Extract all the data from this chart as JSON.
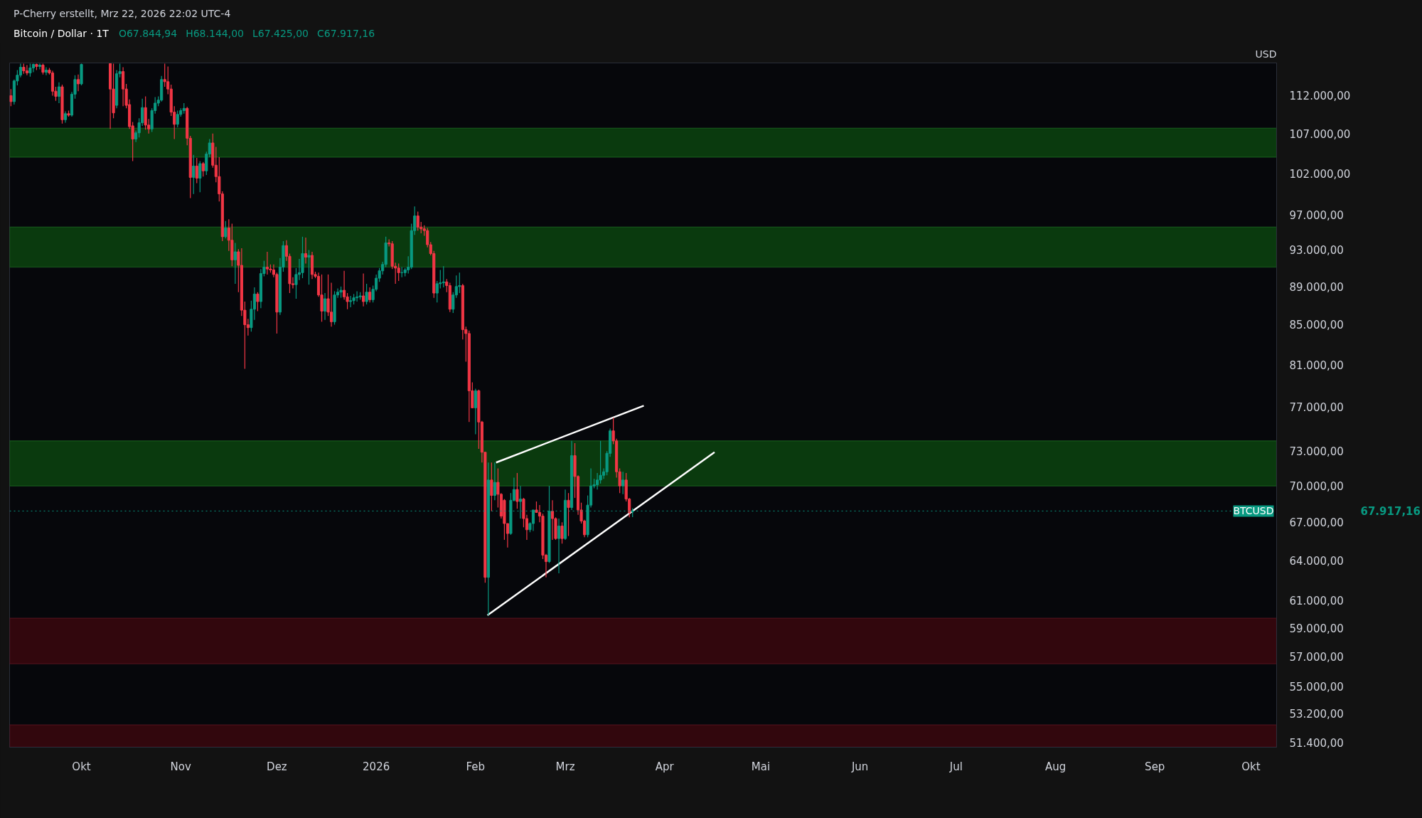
{
  "chart_data": {
    "type": "candlestick",
    "title": "P-Cherry erstellt, Mrz 22, 2026 22:02 UTC-4",
    "subtitle": "Bitcoin / Dollar · 1T",
    "ylabel": "USD",
    "log": true,
    "x": [
      "2025-09-09",
      "2025-09-10",
      "2025-09-11",
      "2025-09-12",
      "2025-09-13",
      "2025-09-14",
      "2025-09-15",
      "2025-09-16",
      "2025-09-17",
      "2025-09-18",
      "2025-09-19",
      "2025-09-20",
      "2025-09-21",
      "2025-09-22",
      "2025-09-23",
      "2025-09-24",
      "2025-09-25",
      "2025-09-26",
      "2025-09-27",
      "2025-09-28",
      "2025-09-29",
      "2025-09-30",
      "2025-10-01",
      "2025-10-10",
      "2025-10-11",
      "2025-10-12",
      "2025-10-13",
      "2025-10-14",
      "2025-10-15",
      "2025-10-16",
      "2025-10-17",
      "2025-10-18",
      "2025-10-19",
      "2025-10-20",
      "2025-10-21",
      "2025-10-22",
      "2025-10-23",
      "2025-10-24",
      "2025-10-25",
      "2025-10-26",
      "2025-10-27",
      "2025-10-28",
      "2025-10-29",
      "2025-10-30",
      "2025-10-31",
      "2025-11-01",
      "2025-11-02",
      "2025-11-03",
      "2025-11-04",
      "2025-11-05",
      "2025-11-06",
      "2025-11-07",
      "2025-11-08",
      "2025-11-09",
      "2025-11-10",
      "2025-11-11",
      "2025-11-12",
      "2025-11-13",
      "2025-11-14",
      "2025-11-15",
      "2025-11-16",
      "2025-11-17",
      "2025-11-18",
      "2025-11-19",
      "2025-11-20",
      "2025-11-21",
      "2025-11-22",
      "2025-11-23",
      "2025-11-24",
      "2025-11-25",
      "2025-11-26",
      "2025-11-27",
      "2025-11-28",
      "2025-11-29",
      "2025-11-30",
      "2025-12-01",
      "2025-12-02",
      "2025-12-03",
      "2025-12-04",
      "2025-12-05",
      "2025-12-06",
      "2025-12-07",
      "2025-12-08",
      "2025-12-09",
      "2025-12-10",
      "2025-12-11",
      "2025-12-12",
      "2025-12-13",
      "2025-12-14",
      "2025-12-15",
      "2025-12-16",
      "2025-12-17",
      "2025-12-18",
      "2025-12-19",
      "2025-12-20",
      "2025-12-21",
      "2025-12-22",
      "2025-12-23",
      "2025-12-24",
      "2025-12-25",
      "2025-12-26",
      "2025-12-27",
      "2025-12-28",
      "2025-12-29",
      "2025-12-30",
      "2025-12-31",
      "2026-01-01",
      "2026-01-02",
      "2026-01-03",
      "2026-01-04",
      "2026-01-05",
      "2026-01-06",
      "2026-01-07",
      "2026-01-08",
      "2026-01-09",
      "2026-01-10",
      "2026-01-11",
      "2026-01-12",
      "2026-01-13",
      "2026-01-14",
      "2026-01-15",
      "2026-01-16",
      "2026-01-17",
      "2026-01-18",
      "2026-01-19",
      "2026-01-20",
      "2026-01-21",
      "2026-01-22",
      "2026-01-23",
      "2026-01-24",
      "2026-01-25",
      "2026-01-26",
      "2026-01-27",
      "2026-01-28",
      "2026-01-29",
      "2026-01-30",
      "2026-01-31",
      "2026-02-01",
      "2026-02-02",
      "2026-02-03",
      "2026-02-04",
      "2026-02-05",
      "2026-02-06",
      "2026-02-07",
      "2026-02-08",
      "2026-02-09",
      "2026-02-10",
      "2026-02-11",
      "2026-02-12",
      "2026-02-13",
      "2026-02-14",
      "2026-02-15",
      "2026-02-16",
      "2026-02-17",
      "2026-02-18",
      "2026-02-19",
      "2026-02-20",
      "2026-02-21",
      "2026-02-22",
      "2026-02-23",
      "2026-02-24",
      "2026-02-25",
      "2026-02-26",
      "2026-02-27",
      "2026-02-28",
      "2026-03-01",
      "2026-03-02",
      "2026-03-03",
      "2026-03-04",
      "2026-03-05",
      "2026-03-06",
      "2026-03-07",
      "2026-03-08",
      "2026-03-09",
      "2026-03-10",
      "2026-03-11",
      "2026-03-12",
      "2026-03-13",
      "2026-03-14",
      "2026-03-15",
      "2026-03-16",
      "2026-03-17",
      "2026-03-18",
      "2026-03-19",
      "2026-03-20",
      "2026-03-21",
      "2026-03-22"
    ],
    "ohlc": [
      [
        112000,
        112900,
        110600,
        111200
      ],
      [
        111200,
        114200,
        110800,
        114000
      ],
      [
        114000,
        115500,
        113400,
        114800
      ],
      [
        114800,
        116400,
        114500,
        115900
      ],
      [
        115900,
        116400,
        115000,
        115400
      ],
      [
        115400,
        116200,
        114800,
        115100
      ],
      [
        115100,
        116400,
        114600,
        115800
      ],
      [
        115800,
        116400,
        115200,
        116300
      ],
      [
        116300,
        116400,
        115500,
        116000
      ],
      [
        116000,
        116400,
        115600,
        116200
      ],
      [
        116200,
        116400,
        114900,
        115200
      ],
      [
        115200,
        115900,
        114800,
        115500
      ],
      [
        115500,
        115800,
        114900,
        115100
      ],
      [
        115100,
        115400,
        112000,
        112600
      ],
      [
        112600,
        113200,
        111300,
        111900
      ],
      [
        111900,
        113800,
        111000,
        113200
      ],
      [
        113200,
        113500,
        108300,
        108800
      ],
      [
        108800,
        109900,
        108400,
        109600
      ],
      [
        109600,
        110000,
        109200,
        109400
      ],
      [
        109400,
        112500,
        109200,
        112200
      ],
      [
        112200,
        114800,
        111600,
        114200
      ],
      [
        114200,
        114900,
        112600,
        113600
      ],
      [
        113600,
        116400,
        113400,
        116300
      ],
      [
        116400,
        116400,
        107600,
        112900
      ],
      [
        112900,
        116400,
        109000,
        109700
      ],
      [
        110700,
        115500,
        110300,
        115000
      ],
      [
        115000,
        116400,
        114500,
        115300
      ],
      [
        115300,
        115900,
        110600,
        112900
      ],
      [
        112900,
        113600,
        110300,
        110700
      ],
      [
        110800,
        111500,
        107600,
        107900
      ],
      [
        108000,
        108500,
        103500,
        106300
      ],
      [
        106300,
        107400,
        105900,
        107100
      ],
      [
        107100,
        109000,
        106500,
        108400
      ],
      [
        108400,
        111600,
        108000,
        110400
      ],
      [
        110400,
        111900,
        107500,
        108100
      ],
      [
        108100,
        108900,
        107000,
        107600
      ],
      [
        107600,
        110300,
        107200,
        110000
      ],
      [
        110000,
        111800,
        109600,
        111000
      ],
      [
        111000,
        111900,
        110600,
        111400
      ],
      [
        111400,
        114700,
        111200,
        114200
      ],
      [
        114200,
        116400,
        113200,
        113900
      ],
      [
        113900,
        116000,
        112200,
        112900
      ],
      [
        112900,
        113500,
        109300,
        109800
      ],
      [
        109800,
        110600,
        106300,
        108200
      ],
      [
        108200,
        110000,
        107800,
        109500
      ],
      [
        109500,
        110300,
        109200,
        110000
      ],
      [
        110000,
        111000,
        109600,
        110300
      ],
      [
        110300,
        110500,
        105500,
        106400
      ],
      [
        106400,
        106700,
        99000,
        101500
      ],
      [
        101500,
        104300,
        99500,
        102900
      ],
      [
        102900,
        103900,
        100800,
        101400
      ],
      [
        101400,
        103500,
        99700,
        103200
      ],
      [
        103200,
        103400,
        101600,
        102300
      ],
      [
        102300,
        104700,
        101800,
        104400
      ],
      [
        104400,
        106300,
        104000,
        105800
      ],
      [
        105800,
        107000,
        102700,
        103000
      ],
      [
        103000,
        105300,
        100900,
        101600
      ],
      [
        101600,
        104000,
        98600,
        99500
      ],
      [
        99500,
        99800,
        94000,
        94500
      ],
      [
        94500,
        96300,
        94300,
        95500
      ],
      [
        95500,
        96500,
        92900,
        94100
      ],
      [
        94100,
        96000,
        91200,
        91900
      ],
      [
        91900,
        93800,
        89300,
        92800
      ],
      [
        92800,
        93100,
        88400,
        91300
      ],
      [
        91300,
        93200,
        85900,
        86500
      ],
      [
        86500,
        87400,
        80600,
        85000
      ],
      [
        85000,
        85600,
        83900,
        84700
      ],
      [
        84700,
        87500,
        84300,
        86600
      ],
      [
        86600,
        88900,
        85500,
        88200
      ],
      [
        88200,
        88400,
        86400,
        87400
      ],
      [
        87400,
        90900,
        86700,
        90400
      ],
      [
        90400,
        91800,
        90100,
        91100
      ],
      [
        91100,
        92800,
        90300,
        90900
      ],
      [
        90900,
        91400,
        90500,
        90800
      ],
      [
        90800,
        91400,
        90000,
        90300
      ],
      [
        90300,
        90500,
        84100,
        86300
      ],
      [
        86300,
        92100,
        86000,
        91100
      ],
      [
        91100,
        94000,
        90600,
        93500
      ],
      [
        93500,
        94100,
        91800,
        92300
      ],
      [
        92300,
        92600,
        88300,
        89300
      ],
      [
        89300,
        90000,
        88800,
        89200
      ],
      [
        89200,
        91000,
        87700,
        90300
      ],
      [
        90300,
        92000,
        89700,
        90500
      ],
      [
        90500,
        94500,
        89900,
        92600
      ],
      [
        92600,
        94400,
        91500,
        92200
      ],
      [
        92200,
        93000,
        89200,
        92400
      ],
      [
        92400,
        92800,
        89800,
        90300
      ],
      [
        90300,
        90600,
        89900,
        90100
      ],
      [
        90100,
        90500,
        87900,
        88100
      ],
      [
        88100,
        90300,
        85300,
        86400
      ],
      [
        86400,
        88300,
        85500,
        87700
      ],
      [
        87700,
        90300,
        85900,
        86300
      ],
      [
        86300,
        89400,
        84800,
        85300
      ],
      [
        85300,
        88500,
        85000,
        88100
      ],
      [
        88100,
        88800,
        87800,
        88400
      ],
      [
        88400,
        89000,
        87800,
        88600
      ],
      [
        88600,
        90700,
        87600,
        87900
      ],
      [
        87900,
        88300,
        86600,
        87400
      ],
      [
        87400,
        88000,
        86800,
        87500
      ],
      [
        87500,
        88200,
        87100,
        87800
      ],
      [
        87800,
        88500,
        87400,
        87900
      ],
      [
        87900,
        88400,
        87600,
        88000
      ],
      [
        88000,
        90400,
        86900,
        87400
      ],
      [
        87400,
        89300,
        87100,
        88400
      ],
      [
        88400,
        88900,
        87300,
        87600
      ],
      [
        87600,
        89100,
        87300,
        88700
      ],
      [
        88700,
        90300,
        88500,
        89900
      ],
      [
        89900,
        91000,
        89500,
        90700
      ],
      [
        90700,
        91700,
        90300,
        91400
      ],
      [
        91400,
        94500,
        91100,
        93800
      ],
      [
        93800,
        94200,
        93400,
        93700
      ],
      [
        93700,
        94000,
        90900,
        91200
      ],
      [
        91200,
        91600,
        89300,
        91000
      ],
      [
        91000,
        91500,
        89600,
        90500
      ],
      [
        90500,
        91100,
        90000,
        90500
      ],
      [
        90500,
        91000,
        90100,
        90800
      ],
      [
        90800,
        92300,
        90400,
        91100
      ],
      [
        91100,
        96000,
        90900,
        95200
      ],
      [
        95200,
        98000,
        94700,
        96900
      ],
      [
        96900,
        97400,
        95200,
        95600
      ],
      [
        95600,
        96200,
        94900,
        95400
      ],
      [
        95400,
        95800,
        94600,
        95200
      ],
      [
        95200,
        95500,
        93300,
        93600
      ],
      [
        93600,
        93900,
        92400,
        92600
      ],
      [
        92600,
        92900,
        87800,
        88300
      ],
      [
        88300,
        89600,
        87300,
        89300
      ],
      [
        89300,
        90800,
        88800,
        89400
      ],
      [
        89400,
        91200,
        88900,
        89500
      ],
      [
        89500,
        89800,
        88400,
        89100
      ],
      [
        89100,
        89400,
        86300,
        86600
      ],
      [
        86600,
        88400,
        86200,
        88100
      ],
      [
        88100,
        90200,
        87800,
        89000
      ],
      [
        89000,
        90500,
        88300,
        89100
      ],
      [
        89100,
        89300,
        83500,
        84500
      ],
      [
        84500,
        84800,
        81300,
        84100
      ],
      [
        84100,
        84400,
        75600,
        78500
      ],
      [
        78500,
        79300,
        76900,
        76900
      ],
      [
        76900,
        78700,
        74500,
        78500
      ],
      [
        78500,
        78600,
        73200,
        75600
      ],
      [
        75600,
        75700,
        72000,
        72900
      ],
      [
        72900,
        72900,
        62300,
        62700
      ],
      [
        62700,
        72000,
        59900,
        70500
      ],
      [
        70500,
        72000,
        67900,
        69200
      ],
      [
        69200,
        72000,
        68800,
        70300
      ],
      [
        70300,
        71500,
        68200,
        69300
      ],
      [
        69300,
        69400,
        67300,
        67500
      ],
      [
        68800,
        68900,
        65600,
        66900
      ],
      [
        66900,
        66900,
        65000,
        66100
      ],
      [
        66100,
        69400,
        66000,
        68800
      ],
      [
        68800,
        70700,
        68700,
        69700
      ],
      [
        69700,
        71100,
        68100,
        68700
      ],
      [
        68700,
        70000,
        67300,
        68900
      ],
      [
        68900,
        69000,
        66600,
        67300
      ],
      [
        67300,
        67600,
        65600,
        66400
      ],
      [
        66400,
        67000,
        66200,
        66900
      ],
      [
        66900,
        68000,
        66300,
        68000
      ],
      [
        68000,
        68700,
        67800,
        67800
      ],
      [
        67800,
        68400,
        67000,
        67500
      ],
      [
        67500,
        67700,
        64100,
        64400
      ],
      [
        64400,
        64500,
        62700,
        63900
      ],
      [
        63900,
        70000,
        63800,
        67900
      ],
      [
        67900,
        68800,
        65600,
        67300
      ],
      [
        67300,
        67400,
        65600,
        65700
      ],
      [
        65700,
        67300,
        63000,
        66700
      ],
      [
        66700,
        67000,
        65300,
        65700
      ],
      [
        65700,
        69700,
        65600,
        68800
      ],
      [
        68800,
        69400,
        65900,
        68200
      ],
      [
        68200,
        73900,
        68000,
        72600
      ],
      [
        72600,
        73700,
        69000,
        70800
      ],
      [
        70800,
        70900,
        67600,
        68000
      ],
      [
        68000,
        68600,
        66900,
        67100
      ],
      [
        67100,
        67200,
        65800,
        66000
      ],
      [
        66000,
        69200,
        65800,
        68400
      ],
      [
        68400,
        71500,
        68200,
        70000
      ],
      [
        70000,
        70600,
        69800,
        70100
      ],
      [
        70100,
        71100,
        69700,
        70500
      ],
      [
        70500,
        73900,
        70200,
        70900
      ],
      [
        70900,
        71500,
        70600,
        71200
      ],
      [
        71200,
        73000,
        70900,
        72800
      ],
      [
        72800,
        75000,
        72500,
        74800
      ],
      [
        74800,
        76000,
        73600,
        73900
      ],
      [
        73900,
        74100,
        70700,
        71200
      ],
      [
        71200,
        71500,
        69400,
        70000
      ],
      [
        70000,
        71200,
        69300,
        70500
      ],
      [
        70500,
        71100,
        68700,
        68900
      ],
      [
        68900,
        69000,
        67400,
        67800
      ],
      [
        67844.94,
        68144,
        67425,
        67917.16
      ]
    ],
    "series": [
      {
        "type": "line",
        "color": "#ffffff",
        "x": [
          "2026-02-07T10:00",
          "2026-03-25T12:00"
        ],
        "values": [
          72000,
          77100
        ]
      },
      {
        "type": "line",
        "color": "#ffffff",
        "x": [
          "2026-02-04T17:00",
          "2026-04-16T14:00"
        ],
        "values": [
          59900,
          72900
        ]
      }
    ],
    "bands": [
      {
        "axis": "y",
        "from": 104000,
        "to": 107700,
        "color": "#0a3a0e"
      },
      {
        "axis": "y",
        "from": 91100,
        "to": 95600,
        "color": "#0a3a0e"
      },
      {
        "axis": "y",
        "from": 70000,
        "to": 73900,
        "color": "#0a3a0e"
      },
      {
        "axis": "y",
        "from": 56500,
        "to": 59700,
        "color": "#32070d"
      },
      {
        "axis": "y",
        "from": 51100,
        "to": 52500,
        "color": "#32070d"
      }
    ],
    "ref_lines": [
      {
        "axis": "y",
        "value": 67917.16,
        "label": "BTCUSD",
        "color": "#089981",
        "line_style": "dotted"
      }
    ],
    "annotations": [
      "O67.844,94",
      "H68.144,00",
      "L67.425,00",
      "C67.917,16",
      "67.917,16"
    ],
    "ylim": [
      51100,
      116500
    ],
    "yticks": [
      {
        "value": 51400,
        "label": "51.400,00"
      },
      {
        "value": 53200,
        "label": "53.200,00"
      },
      {
        "value": 55000,
        "label": "55.000,00"
      },
      {
        "value": 57000,
        "label": "57.000,00"
      },
      {
        "value": 59000,
        "label": "59.000,00"
      },
      {
        "value": 61000,
        "label": "61.000,00"
      },
      {
        "value": 64000,
        "label": "64.000,00"
      },
      {
        "value": 67000,
        "label": "67.000,00"
      },
      {
        "value": 70000,
        "label": "70.000,00"
      },
      {
        "value": 73000,
        "label": "73.000,00"
      },
      {
        "value": 77000,
        "label": "77.000,00"
      },
      {
        "value": 81000,
        "label": "81.000,00"
      },
      {
        "value": 85000,
        "label": "85.000,00"
      },
      {
        "value": 89000,
        "label": "89.000,00"
      },
      {
        "value": 93000,
        "label": "93.000,00"
      },
      {
        "value": 97000,
        "label": "97.000,00"
      },
      {
        "value": 102000,
        "label": "102.000,00"
      },
      {
        "value": 107000,
        "label": "107.000,00"
      },
      {
        "value": 112000,
        "label": "112.000,00"
      }
    ],
    "xlim": [
      "2025-09-08T14:00",
      "2026-10-09"
    ],
    "xticks": [
      {
        "value": "2025-10-01",
        "label": "Okt"
      },
      {
        "value": "2025-11-01",
        "label": "Nov"
      },
      {
        "value": "2025-12-01",
        "label": "Dez"
      },
      {
        "value": "2026-01-01",
        "label": "2026"
      },
      {
        "value": "2026-02-01",
        "label": "Feb"
      },
      {
        "value": "2026-03-01",
        "label": "Mrz"
      },
      {
        "value": "2026-04-01",
        "label": "Apr"
      },
      {
        "value": "2026-05-01",
        "label": "Mai"
      },
      {
        "value": "2026-06-01",
        "label": "Jun"
      },
      {
        "value": "2026-07-01",
        "label": "Jul"
      },
      {
        "value": "2026-08-01",
        "label": "Aug"
      },
      {
        "value": "2026-09-01",
        "label": "Sep"
      },
      {
        "value": "2026-10-01",
        "label": "Okt"
      }
    ]
  }
}
